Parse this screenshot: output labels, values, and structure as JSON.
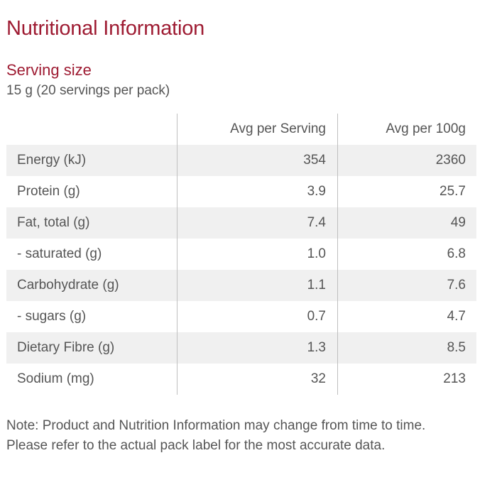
{
  "title": "Nutritional Information",
  "serving": {
    "label": "Serving size",
    "value": "15 g (20 servings per pack)"
  },
  "table": {
    "headers": [
      "",
      "Avg per Serving",
      "Avg per 100g"
    ],
    "rows": [
      {
        "nutrient": "Energy (kJ)",
        "per_serving": "354",
        "per_100g": "2360"
      },
      {
        "nutrient": "Protein (g)",
        "per_serving": "3.9",
        "per_100g": "25.7"
      },
      {
        "nutrient": "Fat, total (g)",
        "per_serving": "7.4",
        "per_100g": "49"
      },
      {
        "nutrient": "- saturated (g)",
        "per_serving": "1.0",
        "per_100g": "6.8"
      },
      {
        "nutrient": "Carbohydrate (g)",
        "per_serving": "1.1",
        "per_100g": "7.6"
      },
      {
        "nutrient": "- sugars (g)",
        "per_serving": "0.7",
        "per_100g": "4.7"
      },
      {
        "nutrient": "Dietary Fibre (g)",
        "per_serving": "1.3",
        "per_100g": "8.5"
      },
      {
        "nutrient": "Sodium (mg)",
        "per_serving": "32",
        "per_100g": "213"
      }
    ]
  },
  "note": "Note: Product and Nutrition Information may change from time to time. Please refer to the actual pack label for the most accurate data.",
  "colors": {
    "accent": "#9e1b32",
    "text": "#555555",
    "row_shade": "#f0f0f0",
    "divider": "#bfbfbf"
  }
}
